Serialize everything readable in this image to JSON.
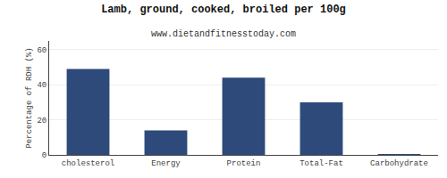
{
  "chart_data": {
    "type": "bar",
    "title": "Lamb, ground, cooked, broiled per 100g",
    "subtitle": "www.dietandfitnesstoday.com",
    "ylabel": "Percentage of RDH (%)",
    "categories": [
      "cholesterol",
      "Energy",
      "Protein",
      "Total-Fat",
      "Carbohydrate"
    ],
    "values": [
      49,
      14,
      44,
      30,
      0.4
    ],
    "color": "#2d4a7a",
    "ylim": [
      0,
      65
    ],
    "yticks": [
      0,
      20,
      40,
      60
    ],
    "grid": true
  }
}
